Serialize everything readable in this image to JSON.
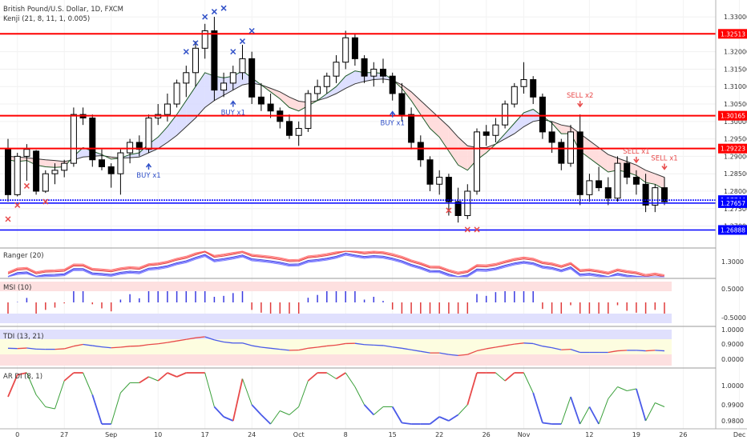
{
  "header": {
    "symbol": "British Pound/U.S. Dollar, 1D, FXCM",
    "indicator": "Kenji (21, 8, 11, 1, 0.005)"
  },
  "panels": {
    "ranger": {
      "label": "Ranger (20)",
      "scale_label": "1.3000"
    },
    "msi": {
      "label": "MSI (10)",
      "scale_labels": [
        "0.5000",
        "-0.5000"
      ]
    },
    "tdi": {
      "label": "TDI (13, 21)",
      "scale_labels": [
        "1.0000",
        "0.9000",
        "0.0000"
      ]
    },
    "ardi": {
      "label": "AR DI (8, 1)",
      "scale_labels": [
        "1.0000",
        "0.9900",
        "0.9800"
      ]
    }
  },
  "signals": {
    "buy": "BUY x1",
    "sell_x2": "SELL x2",
    "sell_x1": "SELL x1"
  },
  "colors": {
    "up_candle": "#ffffff",
    "down_candle": "#000000",
    "level_red": "#ff0000",
    "level_blue": "#0000ff",
    "signal_buy": "#3050c8",
    "signal_sell": "#e84a4a",
    "cloud_bull": "#d9dcff",
    "cloud_bear": "#ffd9d9",
    "cloud_green": "#d9ffd9"
  },
  "chart_data": {
    "type": "candlestick",
    "ylim": [
      1.266,
      1.333
    ],
    "y_ticks": [
      "1.33000",
      "1.32500",
      "1.32000",
      "1.31500",
      "1.31000",
      "1.30500",
      "1.30000",
      "1.29500",
      "1.29000",
      "1.28500",
      "1.28000",
      "1.27500",
      "1.27000"
    ],
    "x_ticks": [
      {
        "i": 1,
        "label": "0"
      },
      {
        "i": 6,
        "label": "27"
      },
      {
        "i": 11,
        "label": "Sep"
      },
      {
        "i": 16,
        "label": "10"
      },
      {
        "i": 21,
        "label": "17"
      },
      {
        "i": 26,
        "label": "24"
      },
      {
        "i": 31,
        "label": "Oct"
      },
      {
        "i": 36,
        "label": "8"
      },
      {
        "i": 41,
        "label": "15"
      },
      {
        "i": 46,
        "label": "22"
      },
      {
        "i": 51,
        "label": "26"
      },
      {
        "i": 55,
        "label": "Nov"
      },
      {
        "i": 62,
        "label": "12"
      },
      {
        "i": 67,
        "label": "19"
      },
      {
        "i": 72,
        "label": "26"
      },
      {
        "i": 78,
        "label": "Dec"
      }
    ],
    "levels": [
      {
        "value": 1.32513,
        "label": "1.32513",
        "color": "red"
      },
      {
        "value": 1.30165,
        "label": "1.30165",
        "color": "red"
      },
      {
        "value": 1.29223,
        "label": "1.29223",
        "color": "red"
      },
      {
        "value": 1.27744,
        "label": "1.27744",
        "color": "blue"
      },
      {
        "value": 1.27657,
        "label": "1.27657",
        "color": "blue"
      },
      {
        "value": 1.26888,
        "label": "1.26888",
        "color": "blue"
      }
    ],
    "ohlc": [
      [
        1.292,
        1.295,
        1.277,
        1.279
      ],
      [
        1.279,
        1.291,
        1.2785,
        1.29
      ],
      [
        1.29,
        1.2935,
        1.283,
        1.292
      ],
      [
        1.2915,
        1.2918,
        1.279,
        1.28
      ],
      [
        1.28,
        1.286,
        1.2795,
        1.285
      ],
      [
        1.285,
        1.288,
        1.282,
        1.286
      ],
      [
        1.286,
        1.289,
        1.284,
        1.288
      ],
      [
        1.288,
        1.304,
        1.287,
        1.302
      ],
      [
        1.302,
        1.304,
        1.299,
        1.301
      ],
      [
        1.301,
        1.302,
        1.287,
        1.289
      ],
      [
        1.289,
        1.292,
        1.286,
        1.287
      ],
      [
        1.287,
        1.288,
        1.281,
        1.285
      ],
      [
        1.285,
        1.292,
        1.279,
        1.291
      ],
      [
        1.291,
        1.295,
        1.288,
        1.294
      ],
      [
        1.294,
        1.296,
        1.29,
        1.292
      ],
      [
        1.292,
        1.302,
        1.291,
        1.301
      ],
      [
        1.301,
        1.305,
        1.299,
        1.302
      ],
      [
        1.302,
        1.308,
        1.3,
        1.305
      ],
      [
        1.305,
        1.312,
        1.304,
        1.311
      ],
      [
        1.311,
        1.316,
        1.307,
        1.314
      ],
      [
        1.314,
        1.323,
        1.31,
        1.321
      ],
      [
        1.321,
        1.328,
        1.318,
        1.326
      ],
      [
        1.326,
        1.33,
        1.306,
        1.309
      ],
      [
        1.309,
        1.314,
        1.307,
        1.311
      ],
      [
        1.311,
        1.316,
        1.309,
        1.314
      ],
      [
        1.314,
        1.322,
        1.312,
        1.318
      ],
      [
        1.318,
        1.32,
        1.305,
        1.307
      ],
      [
        1.307,
        1.311,
        1.303,
        1.305
      ],
      [
        1.305,
        1.308,
        1.301,
        1.303
      ],
      [
        1.303,
        1.304,
        1.298,
        1.3
      ],
      [
        1.3,
        1.302,
        1.295,
        1.296
      ],
      [
        1.296,
        1.3,
        1.293,
        1.298
      ],
      [
        1.298,
        1.309,
        1.297,
        1.308
      ],
      [
        1.308,
        1.312,
        1.306,
        1.31
      ],
      [
        1.31,
        1.314,
        1.308,
        1.313
      ],
      [
        1.313,
        1.319,
        1.311,
        1.317
      ],
      [
        1.317,
        1.326,
        1.315,
        1.324
      ],
      [
        1.324,
        1.325,
        1.316,
        1.318
      ],
      [
        1.318,
        1.319,
        1.311,
        1.313
      ],
      [
        1.313,
        1.317,
        1.31,
        1.315
      ],
      [
        1.315,
        1.318,
        1.311,
        1.313
      ],
      [
        1.313,
        1.314,
        1.306,
        1.308
      ],
      [
        1.308,
        1.311,
        1.3,
        1.302
      ],
      [
        1.302,
        1.304,
        1.292,
        1.294
      ],
      [
        1.294,
        1.296,
        1.287,
        1.289
      ],
      [
        1.289,
        1.29,
        1.28,
        1.282
      ],
      [
        1.282,
        1.286,
        1.279,
        1.284
      ],
      [
        1.284,
        1.285,
        1.273,
        1.277
      ],
      [
        1.277,
        1.281,
        1.271,
        1.273
      ],
      [
        1.273,
        1.282,
        1.272,
        1.28
      ],
      [
        1.28,
        1.298,
        1.279,
        1.297
      ],
      [
        1.297,
        1.299,
        1.293,
        1.296
      ],
      [
        1.296,
        1.301,
        1.294,
        1.299
      ],
      [
        1.299,
        1.306,
        1.298,
        1.305
      ],
      [
        1.305,
        1.311,
        1.304,
        1.31
      ],
      [
        1.31,
        1.317,
        1.308,
        1.312
      ],
      [
        1.312,
        1.313,
        1.305,
        1.307
      ],
      [
        1.307,
        1.308,
        1.295,
        1.297
      ],
      [
        1.297,
        1.3,
        1.291,
        1.294
      ],
      [
        1.294,
        1.295,
        1.286,
        1.288
      ],
      [
        1.288,
        1.299,
        1.287,
        1.297
      ],
      [
        1.297,
        1.302,
        1.276,
        1.279
      ],
      [
        1.279,
        1.285,
        1.277,
        1.283
      ],
      [
        1.283,
        1.287,
        1.28,
        1.281
      ],
      [
        1.281,
        1.284,
        1.276,
        1.278
      ],
      [
        1.278,
        1.29,
        1.277,
        1.288
      ],
      [
        1.288,
        1.29,
        1.282,
        1.284
      ],
      [
        1.284,
        1.286,
        1.279,
        1.282
      ],
      [
        1.282,
        1.285,
        1.274,
        1.276
      ],
      [
        1.276,
        1.282,
        1.274,
        1.281
      ],
      [
        1.281,
        1.284,
        1.276,
        1.277
      ]
    ],
    "kenji_fast": [
      1.289,
      1.2885,
      1.2888,
      1.2875,
      1.287,
      1.2868,
      1.287,
      1.29,
      1.2925,
      1.2915,
      1.2905,
      1.2892,
      1.2895,
      1.2905,
      1.291,
      1.2935,
      1.2955,
      1.2985,
      1.302,
      1.306,
      1.31,
      1.314,
      1.313,
      1.3125,
      1.313,
      1.3145,
      1.3125,
      1.3105,
      1.3085,
      1.3065,
      1.304,
      1.303,
      1.3045,
      1.306,
      1.308,
      1.31,
      1.313,
      1.3145,
      1.314,
      1.314,
      1.3138,
      1.312,
      1.3095,
      1.306,
      1.302,
      1.298,
      1.2955,
      1.2915,
      1.2875,
      1.286,
      1.289,
      1.291,
      1.2935,
      1.2965,
      1.2995,
      1.3025,
      1.3035,
      1.3015,
      1.2995,
      1.2965,
      1.2965,
      1.2915,
      1.2895,
      1.2875,
      1.2855,
      1.286,
      1.2855,
      1.2845,
      1.2825,
      1.282,
      1.2805
    ],
    "kenji_slow": [
      1.29,
      1.2898,
      1.2896,
      1.2893,
      1.289,
      1.2888,
      1.2885,
      1.289,
      1.2898,
      1.29,
      1.2902,
      1.2898,
      1.2895,
      1.2896,
      1.2898,
      1.291,
      1.2922,
      1.294,
      1.296,
      1.2985,
      1.301,
      1.304,
      1.306,
      1.3075,
      1.309,
      1.3105,
      1.311,
      1.3105,
      1.3095,
      1.3085,
      1.307,
      1.3058,
      1.3055,
      1.306,
      1.3068,
      1.308,
      1.3095,
      1.3108,
      1.3115,
      1.312,
      1.3122,
      1.3118,
      1.3105,
      1.3085,
      1.306,
      1.3035,
      1.301,
      1.2985,
      1.2955,
      1.293,
      1.2925,
      1.2925,
      1.2935,
      1.295,
      1.2965,
      1.2985,
      1.3,
      1.3005,
      1.3,
      1.299,
      1.2985,
      1.2965,
      1.2945,
      1.2925,
      1.2905,
      1.2895,
      1.2885,
      1.2875,
      1.286,
      1.285,
      1.284
    ],
    "buy_signals": [
      {
        "i": 15,
        "label": "BUY x1"
      },
      {
        "i": 24,
        "label": "BUY x1"
      },
      {
        "i": 41,
        "label": "BUY x1"
      }
    ],
    "sell_signals": [
      {
        "i": 61,
        "label": "SELL x2"
      },
      {
        "i": 67,
        "label": "SELL x1"
      },
      {
        "i": 70,
        "label": "SELL x1"
      }
    ],
    "x_marks": [
      {
        "i": 0,
        "value": 1.272,
        "color": "red"
      },
      {
        "i": 1,
        "value": 1.276,
        "color": "red"
      },
      {
        "i": 2,
        "value": 1.2815,
        "color": "red"
      },
      {
        "i": 4,
        "value": 1.277,
        "color": "red"
      },
      {
        "i": 19,
        "value": 1.32,
        "color": "blue"
      },
      {
        "i": 20,
        "value": 1.3225,
        "color": "blue"
      },
      {
        "i": 21,
        "value": 1.33,
        "color": "blue"
      },
      {
        "i": 22,
        "value": 1.3315,
        "color": "blue"
      },
      {
        "i": 23,
        "value": 1.3325,
        "color": "blue"
      },
      {
        "i": 24,
        "value": 1.32,
        "color": "blue"
      },
      {
        "i": 25,
        "value": 1.323,
        "color": "blue"
      },
      {
        "i": 26,
        "value": 1.326,
        "color": "blue"
      },
      {
        "i": 47,
        "value": 1.2745,
        "color": "red"
      },
      {
        "i": 49,
        "value": 1.269,
        "color": "red"
      },
      {
        "i": 50,
        "value": 1.269,
        "color": "red"
      }
    ]
  }
}
